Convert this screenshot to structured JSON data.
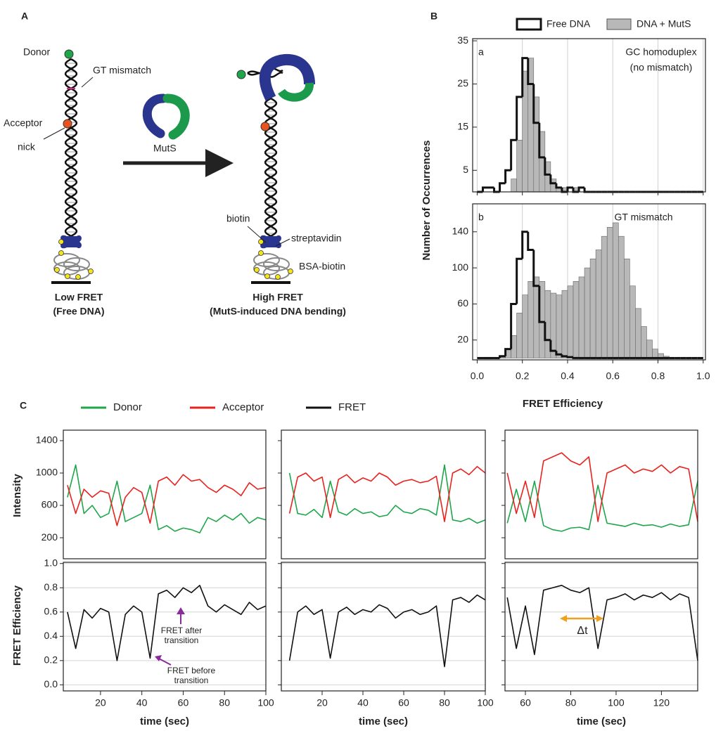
{
  "panel_labels": [
    "A",
    "B",
    "C"
  ],
  "diagram": {
    "donor": "Donor",
    "gt_mismatch": "GT mismatch",
    "acceptor": "Acceptor",
    "nick": "nick",
    "muts": "MutS",
    "biotin": "biotin",
    "streptavidin": "streptavidin",
    "bsa_biotin": "BSA-biotin",
    "left_caption": [
      "Low FRET",
      "(Free DNA)"
    ],
    "right_caption": [
      "High FRET",
      "(MutS-induced DNA bending)"
    ]
  },
  "chart_data": [
    {
      "type": "histogram",
      "ylabel": "Number of Occurrences",
      "xlabel": "FRET Efficiency",
      "bins": [
        0,
        0.025,
        0.05,
        0.075,
        0.1,
        0.125,
        0.15,
        0.175,
        0.2,
        0.225,
        0.25,
        0.275,
        0.3,
        0.325,
        0.35,
        0.375,
        0.4,
        0.425,
        0.45,
        0.475,
        0.5,
        0.525,
        0.55,
        0.575,
        0.6,
        0.625,
        0.65,
        0.675,
        0.7,
        0.725,
        0.75,
        0.775,
        0.8,
        0.825,
        0.85,
        0.875,
        0.9,
        0.925,
        0.95,
        0.975,
        1
      ],
      "xlim": [
        -0.02,
        1.01
      ],
      "xticks": [
        {
          "value": 0,
          "label": "0.0"
        },
        0.2,
        0.4,
        0.6,
        0.8,
        {
          "value": 1,
          "label": "1.0"
        }
      ],
      "grid": true,
      "series": [
        {
          "name": "Free DNA",
          "style": "outline",
          "color": "#111111"
        },
        {
          "name": "DNA + MutS",
          "style": "bar",
          "color": "#b8b8b8"
        }
      ],
      "panels": [
        {
          "label": "a",
          "annotation": [
            "GC homoduplex",
            "(no mismatch)"
          ],
          "ylim": [
            0,
            35.5
          ],
          "yticks": [
            5,
            15,
            25,
            35
          ],
          "values": [
            [
              0,
              1,
              1,
              0,
              2,
              5,
              12,
              22,
              31,
              25,
              16,
              8,
              4,
              2,
              1,
              0,
              1,
              0,
              1,
              0,
              0,
              0,
              0,
              0,
              0,
              0,
              0,
              0,
              0,
              0,
              0,
              0,
              0,
              0,
              0,
              0,
              0,
              0,
              0,
              0
            ],
            [
              0,
              0,
              0,
              0,
              0,
              0,
              3,
              12,
              28,
              31,
              22,
              14,
              7,
              3,
              1,
              1,
              0,
              1,
              0,
              0,
              0,
              0,
              0,
              0,
              0,
              0,
              0,
              0,
              0,
              0,
              0,
              0,
              0,
              0,
              0,
              0,
              0,
              0,
              0,
              0
            ]
          ]
        },
        {
          "label": "b",
          "annotation": [
            "GT mismatch"
          ],
          "ylim": [
            -2,
            171
          ],
          "yticks": [
            20,
            60,
            100,
            140
          ],
          "values": [
            [
              0,
              0,
              0,
              0,
              2,
              10,
              60,
              110,
              140,
              120,
              80,
              40,
              20,
              8,
              4,
              2,
              1,
              0,
              0,
              0,
              0,
              0,
              0,
              0,
              0,
              0,
              0,
              0,
              0,
              0,
              0,
              0,
              0,
              0,
              0,
              0,
              0,
              0,
              0,
              0
            ],
            [
              0,
              0,
              0,
              0,
              3,
              10,
              25,
              50,
              70,
              85,
              90,
              85,
              75,
              72,
              70,
              75,
              80,
              85,
              90,
              100,
              110,
              120,
              135,
              145,
              150,
              135,
              110,
              80,
              55,
              35,
              20,
              10,
              5,
              2,
              0,
              0,
              0,
              0,
              0,
              0
            ]
          ]
        }
      ]
    },
    {
      "type": "line",
      "legend": [
        {
          "name": "Donor",
          "color": "#1fa64a"
        },
        {
          "name": "Acceptor",
          "color": "#e8231f"
        },
        {
          "name": "FRET",
          "color": "#111111"
        }
      ],
      "intensity_ylabel": "Intensity",
      "fret_ylabel": "FRET Efficiency",
      "xlabel": "time (sec)",
      "intensity_ylim": [
        -60,
        1530
      ],
      "intensity_yticks": [
        200,
        600,
        1000,
        1400
      ],
      "fret_ylim": [
        -0.05,
        1.01
      ],
      "fret_yticks": [
        {
          "value": 0,
          "label": "0.0"
        },
        0.2,
        0.4,
        0.6,
        0.8,
        {
          "value": 1,
          "label": "1.0"
        }
      ],
      "grid": true,
      "traces": [
        {
          "xlim": [
            2,
            100
          ],
          "xticks": [
            20,
            40,
            60,
            80,
            100
          ],
          "x": [
            4,
            8,
            12,
            16,
            20,
            24,
            28,
            32,
            36,
            40,
            44,
            48,
            52,
            56,
            60,
            64,
            68,
            72,
            76,
            80,
            84,
            88,
            92,
            96,
            100
          ],
          "donor": [
            700,
            1100,
            500,
            600,
            450,
            500,
            900,
            400,
            450,
            500,
            850,
            300,
            350,
            280,
            320,
            300,
            260,
            450,
            400,
            480,
            420,
            500,
            380,
            450,
            420
          ],
          "acceptor": [
            850,
            500,
            800,
            700,
            780,
            750,
            350,
            700,
            820,
            760,
            380,
            900,
            950,
            850,
            980,
            900,
            920,
            820,
            760,
            850,
            800,
            720,
            880,
            800,
            820
          ],
          "fret": [
            0.6,
            0.3,
            0.62,
            0.55,
            0.63,
            0.6,
            0.2,
            0.58,
            0.65,
            0.6,
            0.22,
            0.75,
            0.78,
            0.72,
            0.8,
            0.76,
            0.82,
            0.65,
            0.6,
            0.66,
            0.62,
            0.58,
            0.68,
            0.62,
            0.65
          ],
          "annotations": [
            [
              "FRET after",
              "transition"
            ],
            [
              "FRET before",
              "transition"
            ]
          ]
        },
        {
          "xlim": [
            0,
            100
          ],
          "xticks": [
            20,
            40,
            60,
            80,
            100
          ],
          "x": [
            4,
            8,
            12,
            16,
            20,
            24,
            28,
            32,
            36,
            40,
            44,
            48,
            52,
            56,
            60,
            64,
            68,
            72,
            76,
            80,
            84,
            88,
            92,
            96,
            100
          ],
          "donor": [
            1000,
            500,
            480,
            550,
            450,
            900,
            520,
            480,
            560,
            500,
            520,
            460,
            480,
            600,
            520,
            500,
            560,
            540,
            480,
            1100,
            420,
            400,
            440,
            380,
            420
          ],
          "acceptor": [
            500,
            950,
            1000,
            900,
            950,
            450,
            920,
            980,
            880,
            940,
            900,
            1000,
            950,
            850,
            900,
            920,
            880,
            900,
            960,
            400,
            1000,
            1050,
            980,
            1080,
            1000
          ],
          "fret": [
            0.2,
            0.6,
            0.65,
            0.58,
            0.62,
            0.22,
            0.6,
            0.64,
            0.58,
            0.62,
            0.6,
            0.66,
            0.63,
            0.55,
            0.6,
            0.62,
            0.58,
            0.6,
            0.65,
            0.15,
            0.7,
            0.72,
            0.68,
            0.74,
            0.7
          ]
        },
        {
          "xlim": [
            51,
            136
          ],
          "xticks": [
            60,
            80,
            100,
            120
          ],
          "x": [
            52,
            56,
            60,
            64,
            68,
            72,
            76,
            80,
            84,
            88,
            92,
            96,
            100,
            104,
            108,
            112,
            116,
            120,
            124,
            128,
            132,
            136
          ],
          "donor": [
            380,
            800,
            400,
            900,
            350,
            300,
            280,
            320,
            330,
            300,
            850,
            380,
            360,
            340,
            380,
            350,
            360,
            330,
            370,
            340,
            360,
            900
          ],
          "acceptor": [
            1000,
            500,
            900,
            450,
            1150,
            1200,
            1250,
            1150,
            1100,
            1200,
            400,
            1000,
            1050,
            1100,
            1000,
            1050,
            1020,
            1100,
            1000,
            1080,
            1050,
            400
          ],
          "fret": [
            0.72,
            0.3,
            0.65,
            0.25,
            0.78,
            0.8,
            0.82,
            0.78,
            0.76,
            0.8,
            0.3,
            0.7,
            0.72,
            0.75,
            0.7,
            0.74,
            0.72,
            0.76,
            0.7,
            0.75,
            0.72,
            0.2
          ],
          "annotations": [
            [
              "Δt"
            ]
          ]
        }
      ]
    }
  ]
}
